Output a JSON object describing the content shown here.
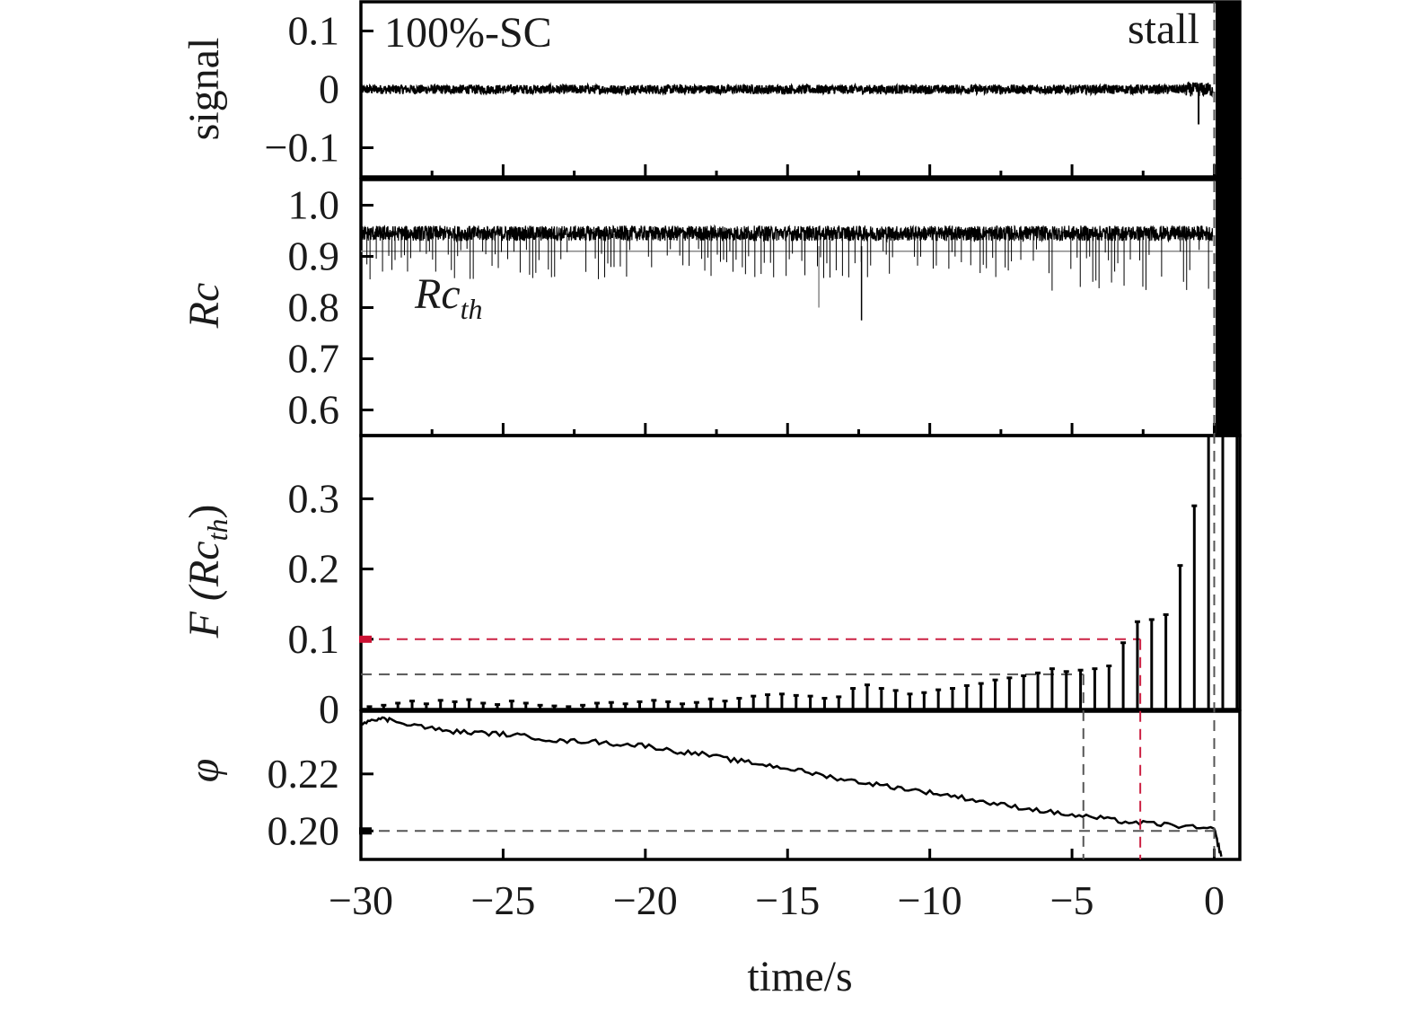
{
  "chart_data": [
    {
      "type": "line",
      "panel": "signal",
      "ylabel": "signal",
      "annotation_left": "100%-SC",
      "annotation_right": "stall",
      "ylim": [
        -0.15,
        0.15
      ],
      "yticks": [
        0.1,
        0,
        -0.1
      ],
      "ytick_labels": [
        "0.1",
        "0",
        "−0.1"
      ],
      "xlim": [
        -30,
        0.9
      ],
      "description_values": {
        "baseline": 0.0,
        "noise_amplitude": 0.008,
        "stall_onset_time": 0.0
      }
    },
    {
      "type": "line",
      "panel": "Rc",
      "ylabel": "Rc",
      "threshold_label": "Rc",
      "threshold_subscript": "th",
      "threshold_value": 0.91,
      "ylim": [
        0.55,
        1.05
      ],
      "yticks": [
        1.0,
        0.9,
        0.8,
        0.7,
        0.6
      ],
      "ytick_labels": [
        "1.0",
        "0.9",
        "0.8",
        "0.7",
        "0.6"
      ],
      "xlim": [
        -30,
        0.9
      ],
      "description_values": {
        "mean": 0.945,
        "noise_amplitude": 0.015
      }
    },
    {
      "type": "bar",
      "panel": "F",
      "ylabel_prefix": "F (",
      "ylabel_main": "Rc",
      "ylabel_sub": "th",
      "ylabel_suffix": ")",
      "ylim": [
        0,
        0.39
      ],
      "yticks": [
        0.3,
        0.2,
        0.1,
        0
      ],
      "ytick_labels": [
        "0.3",
        "0.2",
        "0.1",
        "0"
      ],
      "xlim": [
        -30,
        0.9
      ],
      "reference_lines": [
        0.1,
        0.05
      ],
      "x": [
        -29.7,
        -29.2,
        -28.7,
        -28.2,
        -27.7,
        -27.2,
        -26.7,
        -26.2,
        -25.7,
        -25.2,
        -24.7,
        -24.2,
        -23.7,
        -23.2,
        -22.7,
        -22.2,
        -21.7,
        -21.2,
        -20.7,
        -20.2,
        -19.7,
        -19.2,
        -18.7,
        -18.2,
        -17.7,
        -17.2,
        -16.7,
        -16.2,
        -15.7,
        -15.2,
        -14.7,
        -14.2,
        -13.7,
        -13.2,
        -12.7,
        -12.2,
        -11.7,
        -11.2,
        -10.7,
        -10.2,
        -9.7,
        -9.2,
        -8.7,
        -8.2,
        -7.7,
        -7.2,
        -6.7,
        -6.2,
        -5.7,
        -5.2,
        -4.7,
        -4.2,
        -3.7,
        -3.2,
        -2.7,
        -2.2,
        -1.7,
        -1.2,
        -0.7,
        -0.2,
        0.3,
        0.8
      ],
      "values": [
        0.004,
        0.006,
        0.009,
        0.012,
        0.008,
        0.013,
        0.011,
        0.014,
        0.009,
        0.007,
        0.012,
        0.009,
        0.006,
        0.005,
        0.004,
        0.006,
        0.009,
        0.01,
        0.008,
        0.011,
        0.013,
        0.011,
        0.008,
        0.01,
        0.015,
        0.012,
        0.016,
        0.019,
        0.021,
        0.022,
        0.02,
        0.019,
        0.016,
        0.018,
        0.03,
        0.035,
        0.03,
        0.027,
        0.022,
        0.024,
        0.028,
        0.03,
        0.034,
        0.037,
        0.042,
        0.045,
        0.048,
        0.052,
        0.058,
        0.054,
        0.056,
        0.058,
        0.062,
        0.095,
        0.125,
        0.128,
        0.135,
        0.205,
        0.29,
        0.39,
        0.39,
        0.39
      ]
    },
    {
      "type": "line",
      "panel": "phi",
      "ylabel": "φ",
      "ylim": [
        0.19,
        0.242
      ],
      "yticks": [
        0.22,
        0.2
      ],
      "ytick_labels": [
        "0.22",
        "0.20"
      ],
      "xlim": [
        -30,
        0.9
      ],
      "xticks": [
        -30,
        -25,
        -20,
        -15,
        -10,
        -5,
        0
      ],
      "xtick_labels": [
        "−30",
        "−25",
        "−20",
        "−15",
        "−10",
        "−5",
        "0"
      ],
      "xlabel": "time/s",
      "x": [
        -30,
        -29.5,
        -29,
        -28,
        -27,
        -26,
        -25,
        -24,
        -23,
        -22,
        -21,
        -20,
        -19,
        -18,
        -17,
        -16,
        -15,
        -14,
        -13,
        -12,
        -11,
        -10,
        -9,
        -8,
        -7,
        -6,
        -5,
        -4,
        -3,
        -2,
        -1,
        0,
        0.25
      ],
      "values": [
        0.238,
        0.2395,
        0.239,
        0.237,
        0.235,
        0.2345,
        0.234,
        0.233,
        0.2315,
        0.2315,
        0.2305,
        0.23,
        0.228,
        0.227,
        0.225,
        0.2235,
        0.222,
        0.22,
        0.218,
        0.2165,
        0.215,
        0.2135,
        0.212,
        0.21,
        0.2085,
        0.207,
        0.2055,
        0.2045,
        0.203,
        0.2025,
        0.2015,
        0.2005,
        0.191
      ],
      "reference_h": 0.2,
      "reference_v": [
        -4.6,
        -2.6,
        0.0
      ]
    }
  ],
  "colors": {
    "ink": "#000000",
    "dash_gray": "#555555",
    "dash_red": "#cc2244",
    "marker_red": "#cc1133",
    "threshold_gray": "#888888"
  }
}
